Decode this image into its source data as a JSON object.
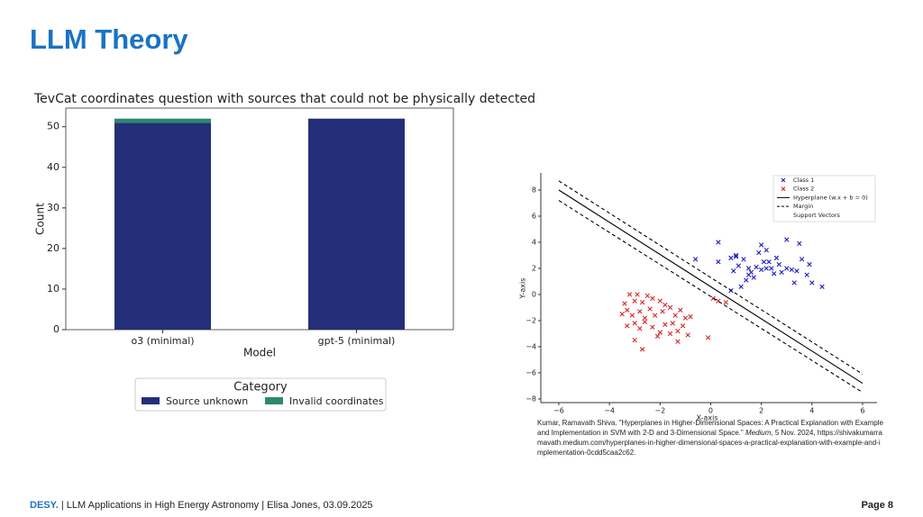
{
  "title": "LLM Theory",
  "chart_data": [
    {
      "type": "bar",
      "stacked": true,
      "title": "TevCat coordinates question with sources that could not be physically detected",
      "x_label": "Model",
      "y_label": "Count",
      "legend_title": "Category",
      "categories": [
        "o3 (minimal)",
        "gpt-5 (minimal)"
      ],
      "series": [
        {
          "name": "Source unknown",
          "color": "#232f78",
          "values": [
            51,
            52
          ]
        },
        {
          "name": "Invalid coordinates",
          "color": "#2a8a6e",
          "values": [
            1,
            0
          ]
        }
      ],
      "ylim": [
        0,
        54.6
      ],
      "yticks": [
        0,
        10,
        20,
        30,
        40,
        50
      ]
    },
    {
      "type": "scatter",
      "x_label": "X-axis",
      "y_label": "Y-axis",
      "legend": "upper right",
      "xlim": [
        -6.71,
        6.57
      ],
      "ylim": [
        -8.28,
        9.31
      ],
      "xticks": [
        {
          "value": -6,
          "label": "−6"
        },
        {
          "value": -4,
          "label": "−4"
        },
        {
          "value": -2,
          "label": "−2"
        },
        0,
        2,
        4,
        6
      ],
      "yticks": [
        {
          "value": -8,
          "label": "−8"
        },
        {
          "value": -6,
          "label": "−6"
        },
        {
          "value": -4,
          "label": "−4"
        },
        {
          "value": -2,
          "label": "−2"
        },
        0,
        2,
        4,
        6,
        8
      ],
      "series": [
        {
          "name": "Class 1",
          "kind": "scatter",
          "color": "#1f1fbf",
          "x": [
            0.3,
            -0.6,
            0.3,
            0.8,
            1.0,
            1.1,
            1.3,
            0.9,
            1.5,
            1.6,
            1.8,
            1.9,
            2.0,
            2.1,
            2.2,
            2.3,
            2.4,
            2.5,
            2.6,
            2.8,
            3.0,
            3.0,
            3.2,
            3.3,
            3.5,
            3.6,
            3.8,
            4.0,
            4.4,
            1.2,
            1.4,
            0.8,
            1.7,
            2.0,
            3.4,
            2.7,
            1.0,
            3.9,
            2.2,
            1.5
          ],
          "values": [
            4.0,
            2.7,
            2.5,
            2.8,
            3.0,
            2.2,
            2.7,
            1.8,
            2.0,
            1.7,
            2.1,
            3.2,
            3.8,
            2.5,
            3.4,
            2.5,
            2.0,
            1.6,
            2.8,
            1.7,
            4.2,
            2.0,
            1.9,
            0.9,
            3.9,
            2.7,
            1.5,
            0.9,
            0.6,
            0.6,
            1.1,
            0.3,
            1.3,
            1.9,
            1.8,
            2.3,
            2.9,
            2.3,
            2.0,
            1.5
          ]
        },
        {
          "name": "Class 2",
          "kind": "scatter",
          "color": "#d62728",
          "x": [
            -3.2,
            -2.9,
            -2.5,
            -3.4,
            -3.0,
            -2.7,
            -2.3,
            -2.0,
            -1.8,
            -3.5,
            -3.3,
            -3.1,
            -2.8,
            -2.6,
            -2.4,
            -2.2,
            -1.9,
            -1.6,
            -1.4,
            -1.2,
            -1.0,
            -0.8,
            -3.3,
            -3.0,
            -2.8,
            -2.6,
            -2.3,
            -2.0,
            -1.8,
            -1.5,
            -1.3,
            -1.1,
            -0.9,
            -3.0,
            -2.7,
            -2.1,
            -1.6,
            -1.3,
            -0.1,
            0.3,
            0.6,
            0.1
          ],
          "values": [
            0.0,
            0.0,
            -0.1,
            -0.7,
            -0.5,
            -0.6,
            -0.3,
            -0.5,
            -0.8,
            -1.5,
            -1.2,
            -1.6,
            -1.3,
            -1.8,
            -1.1,
            -1.6,
            -1.3,
            -1.0,
            -1.6,
            -1.2,
            -1.8,
            -1.7,
            -2.4,
            -2.2,
            -2.6,
            -2.1,
            -2.5,
            -2.9,
            -2.3,
            -2.2,
            -2.8,
            -2.4,
            -3.1,
            -3.5,
            -4.2,
            -3.2,
            -3.0,
            -3.6,
            -3.3,
            -0.5,
            -0.6,
            -0.3
          ]
        },
        {
          "name": "Hyperplane (w.x + b = 0)",
          "kind": "line",
          "color": "#000000",
          "x": [
            -6,
            6
          ],
          "values": [
            8.0,
            -6.8
          ]
        },
        {
          "name": "Margin",
          "kind": "line",
          "dashed": true,
          "color": "#000000",
          "x": [
            -6,
            6,
            null,
            -6,
            6
          ],
          "values": [
            8.7,
            -6.1,
            null,
            7.2,
            -7.5
          ]
        },
        {
          "name": "Support Vectors",
          "kind": "scatter",
          "x": [],
          "values": []
        }
      ]
    }
  ],
  "citation": {
    "text": "Kumar, Ramavath Shiva. \"Hyperplanes in Higher-Dimensional Spaces: A Practical Explanation with Example and Implementation in SVM with 2-D and 3-Dimensional Space.\"",
    "venue": "Medium",
    "date": ", 5 Nov. 2024,",
    "url": "https://shivakumarramavath.medium.com/hyperplanes-in-higher-dimensional-spaces-a-practical-explanation-with-example-and-implementation-0cdd5caa2c62."
  },
  "footer": {
    "brand": "DESY.",
    "text": "| LLM Applications in High Energy Astronomy | Elisa Jones, 03.09.2025",
    "page": "Page 8"
  }
}
